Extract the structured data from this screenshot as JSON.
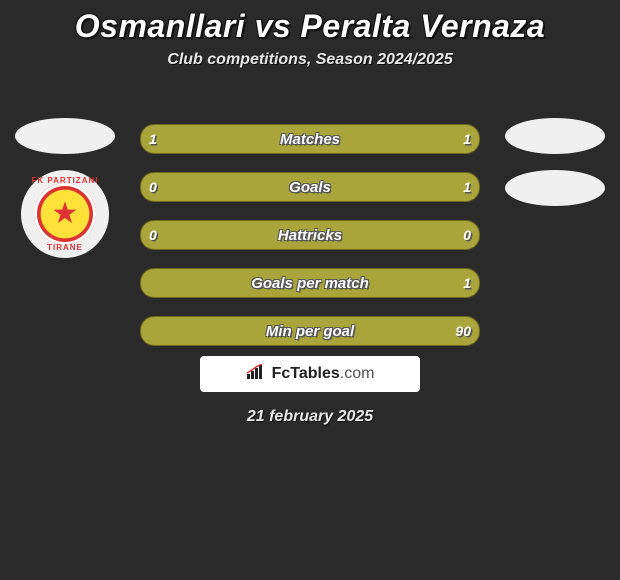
{
  "title": "Osmanllari vs Peralta Vernaza",
  "subtitle": "Club competitions, Season 2024/2025",
  "footer_brand": "FcTables",
  "footer_domain": ".com",
  "date": "21 february 2025",
  "colors": {
    "page_bg": "#2a2a2a",
    "bar_bg": "#6f6820",
    "bar_fill": "#a9a53a",
    "oval": "#f0f0f0",
    "text": "#ffffff"
  },
  "left_badge": {
    "top_text": "FK PARTIZANI",
    "bottom_text": "TIRANE"
  },
  "bars": [
    {
      "label": "Matches",
      "left": "1",
      "right": "1",
      "left_fill_pct": 20,
      "right_fill_pct": 80
    },
    {
      "label": "Goals",
      "left": "0",
      "right": "1",
      "left_fill_pct": 18,
      "right_fill_pct": 82
    },
    {
      "label": "Hattricks",
      "left": "0",
      "right": "0",
      "left_fill_pct": 100,
      "right_fill_pct": 0
    },
    {
      "label": "Goals per match",
      "left": "",
      "right": "1",
      "left_fill_pct": 0,
      "right_fill_pct": 100
    },
    {
      "label": "Min per goal",
      "left": "",
      "right": "90",
      "left_fill_pct": 0,
      "right_fill_pct": 100
    }
  ]
}
